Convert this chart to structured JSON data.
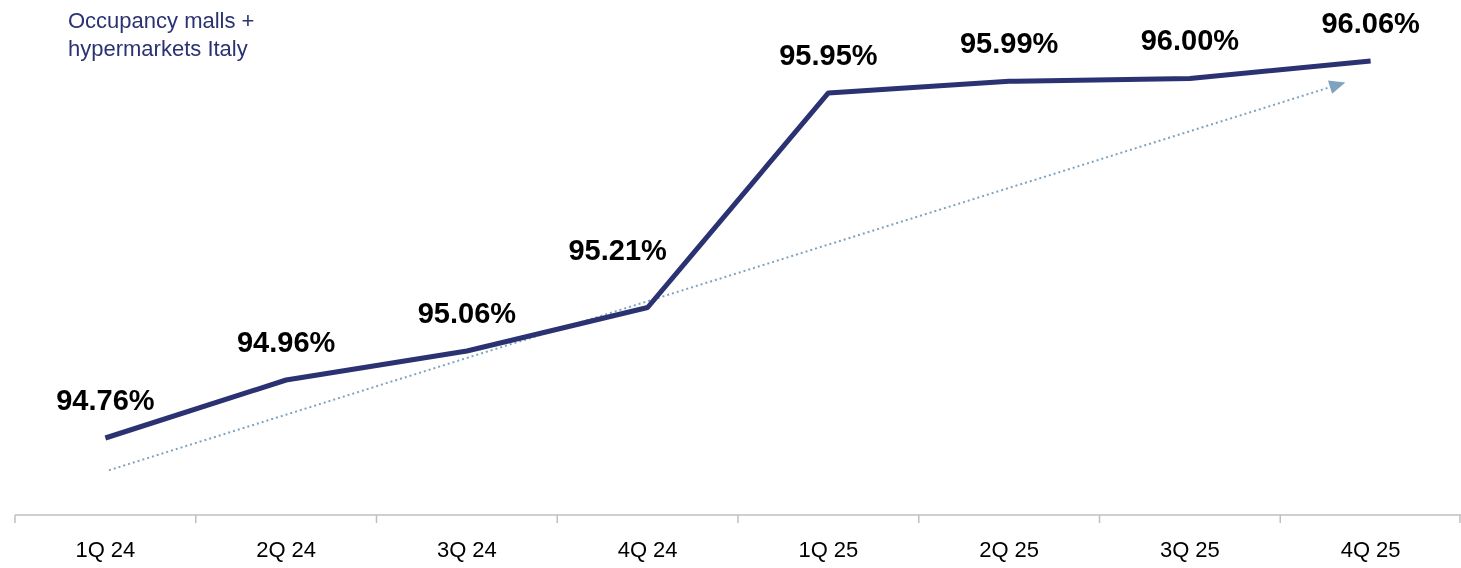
{
  "chart_data": {
    "type": "line",
    "categories": [
      "1Q 24",
      "2Q 24",
      "3Q 24",
      "4Q 24",
      "1Q 25",
      "2Q 25",
      "3Q 25",
      "4Q 25"
    ],
    "series": [
      {
        "name": "Occupancy malls + hypermarkets Italy",
        "color": "#2b3272",
        "values": [
          94.76,
          94.96,
          95.06,
          95.21,
          95.95,
          95.99,
          96.0,
          96.06
        ],
        "value_labels": [
          "94.76%",
          "94.96%",
          "95.06%",
          "95.21%",
          "95.95%",
          "95.99%",
          "96.00%",
          "96.06%"
        ]
      }
    ],
    "legend": "top left",
    "tick_labels": "x",
    "marker": "none",
    "line_style": "solid"
  }
}
